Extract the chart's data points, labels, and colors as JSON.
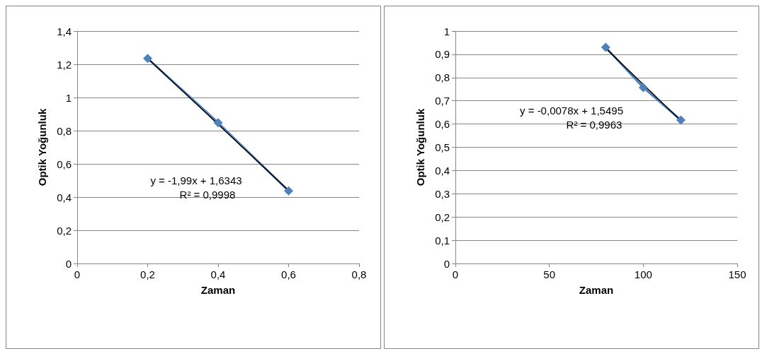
{
  "chart_data": [
    {
      "type": "line",
      "xlabel": "Zaman",
      "ylabel": "Optik Yoğunluk",
      "marker": "diamond",
      "grid": "y",
      "xlim": [
        0,
        0.8
      ],
      "xticks": [
        0,
        {
          "value": 0.2,
          "label": "0,2"
        },
        {
          "value": 0.4,
          "label": "0,4"
        },
        {
          "value": 0.6,
          "label": "0,6"
        },
        {
          "value": 0.8,
          "label": "0,8"
        }
      ],
      "ylim": [
        0,
        1.4
      ],
      "yticks": [
        {
          "value": 0,
          "label": "0"
        },
        {
          "value": 0.2,
          "label": "0,2"
        },
        {
          "value": 0.4,
          "label": "0,4"
        },
        {
          "value": 0.6,
          "label": "0,6"
        },
        {
          "value": 0.8,
          "label": "0,8"
        },
        {
          "value": 1,
          "label": "1"
        },
        {
          "value": 1.2,
          "label": "1,2"
        },
        {
          "value": 1.4,
          "label": "1,4"
        }
      ],
      "series": [
        {
          "color": "#4f81bd",
          "x": [
            0.2,
            0.4,
            0.6
          ],
          "values": [
            1.235,
            0.848,
            0.437
          ]
        },
        {
          "type": "line",
          "color": "#000000",
          "marker": "none",
          "x": [
            0.2,
            0.6
          ],
          "values": [
            1.236,
            0.44
          ]
        }
      ],
      "annotations": [
        "y = -1,99x + 1,6343",
        "R² = 0,9998"
      ]
    },
    {
      "type": "line",
      "xlabel": "Zaman",
      "ylabel": "Optik Yoğunluk",
      "marker": "diamond",
      "grid": "y",
      "xlim": [
        0,
        150
      ],
      "xticks": [
        0,
        50,
        100,
        150
      ],
      "ylim": [
        0,
        1
      ],
      "yticks": [
        {
          "value": 0,
          "label": "0"
        },
        {
          "value": 0.1,
          "label": "0,1"
        },
        {
          "value": 0.2,
          "label": "0,2"
        },
        {
          "value": 0.3,
          "label": "0,3"
        },
        {
          "value": 0.4,
          "label": "0,4"
        },
        {
          "value": 0.5,
          "label": "0,5"
        },
        {
          "value": 0.6,
          "label": "0,6"
        },
        {
          "value": 0.7,
          "label": "0,7"
        },
        {
          "value": 0.8,
          "label": "0,8"
        },
        {
          "value": 0.9,
          "label": "0,9"
        },
        {
          "value": 1,
          "label": "1"
        }
      ],
      "series": [
        {
          "color": "#4f81bd",
          "x": [
            80,
            100,
            120
          ],
          "values": [
            0.93,
            0.757,
            0.617
          ]
        },
        {
          "type": "line",
          "color": "#000000",
          "marker": "none",
          "x": [
            80,
            120
          ],
          "values": [
            0.926,
            0.614
          ]
        }
      ],
      "annotations": [
        "y = -0,0078x + 1,5495",
        "R² = 0,9963"
      ]
    }
  ]
}
